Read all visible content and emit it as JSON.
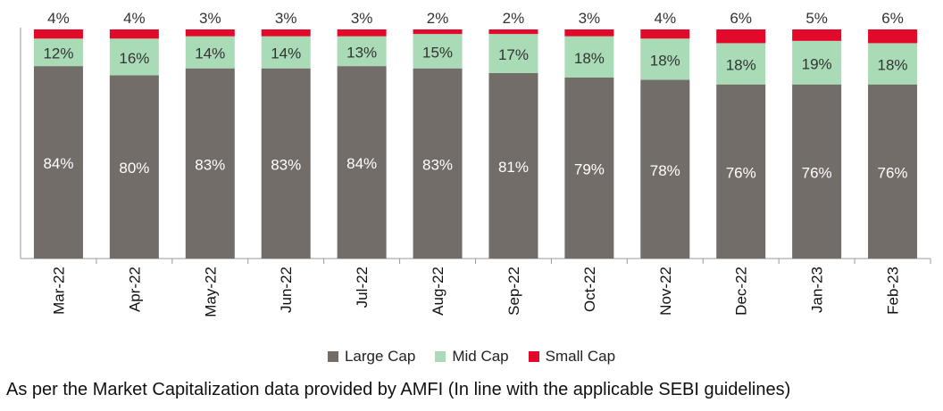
{
  "chart_data": {
    "type": "bar",
    "stacked": true,
    "categories": [
      "Mar-22",
      "Apr-22",
      "May-22",
      "Jun-22",
      "Jul-22",
      "Aug-22",
      "Sep-22",
      "Oct-22",
      "Nov-22",
      "Dec-22",
      "Jan-23",
      "Feb-23"
    ],
    "series": [
      {
        "name": "Large Cap",
        "color": "#736d6a",
        "values": [
          84,
          80,
          83,
          83,
          84,
          83,
          81,
          79,
          78,
          76,
          76,
          76
        ]
      },
      {
        "name": "Mid Cap",
        "color": "#a9dbb7",
        "values": [
          12,
          16,
          14,
          14,
          13,
          15,
          17,
          18,
          18,
          18,
          19,
          18
        ]
      },
      {
        "name": "Small Cap",
        "color": "#e3092b",
        "values": [
          4,
          4,
          3,
          3,
          3,
          2,
          2,
          3,
          4,
          6,
          5,
          6
        ]
      }
    ],
    "value_suffix": "%",
    "ylim": [
      0,
      100
    ],
    "legend_position": "bottom"
  },
  "footnote": "As per the Market Capitalization data provided by AMFI (In line with the applicable SEBI guidelines)"
}
